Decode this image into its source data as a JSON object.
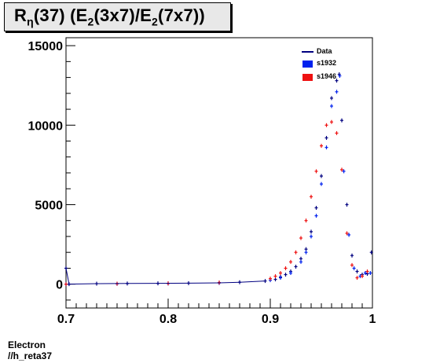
{
  "title": {
    "prefix": "R",
    "sub1": "η",
    "mid": "(37) (E",
    "sub2": "2",
    "mid2": "(3x7)/E",
    "sub3": "2",
    "end": "(7x7))"
  },
  "footer": {
    "line1": "Electron",
    "line2": "//h_reta37"
  },
  "legend": [
    {
      "label": "Data",
      "color": "#000080",
      "style": "line"
    },
    {
      "label": "s1932",
      "color": "#0022ee",
      "style": "box"
    },
    {
      "label": "s1946",
      "color": "#ee1111",
      "style": "box"
    }
  ],
  "chart_data": {
    "type": "scatter",
    "title": "Rη(37) (E2(3x7)/E2(7x7))",
    "xlim": [
      0.7,
      1.0
    ],
    "ylim": [
      -1500,
      15500
    ],
    "x_ticks": [
      "0.7",
      "0.8",
      "0.9",
      "1"
    ],
    "y_ticks": [
      "0",
      "5000",
      "10000",
      "15000"
    ],
    "grid": false,
    "legend_position": "top-right",
    "series": [
      {
        "name": "Data",
        "color": "#000080",
        "points": [
          [
            0.7,
            1000
          ],
          [
            0.703,
            0
          ],
          [
            0.73,
            30
          ],
          [
            0.76,
            40
          ],
          [
            0.79,
            50
          ],
          [
            0.82,
            60
          ],
          [
            0.85,
            80
          ],
          [
            0.87,
            120
          ],
          [
            0.895,
            200
          ],
          [
            0.905,
            300
          ],
          [
            0.91,
            450
          ],
          [
            0.915,
            600
          ],
          [
            0.92,
            800
          ],
          [
            0.925,
            1100
          ],
          [
            0.93,
            1600
          ],
          [
            0.935,
            2200
          ],
          [
            0.94,
            3300
          ],
          [
            0.945,
            4800
          ],
          [
            0.95,
            6800
          ],
          [
            0.955,
            9200
          ],
          [
            0.96,
            11700
          ],
          [
            0.965,
            12800
          ],
          [
            0.9675,
            13200
          ],
          [
            0.97,
            10300
          ],
          [
            0.975,
            5000
          ],
          [
            0.98,
            1800
          ],
          [
            0.985,
            800
          ],
          [
            0.99,
            600
          ],
          [
            0.995,
            650
          ],
          [
            0.999,
            2000
          ]
        ]
      },
      {
        "name": "s1932",
        "color": "#0022ee",
        "points": [
          [
            0.7,
            0
          ],
          [
            0.75,
            20
          ],
          [
            0.8,
            40
          ],
          [
            0.85,
            80
          ],
          [
            0.9,
            250
          ],
          [
            0.91,
            400
          ],
          [
            0.92,
            700
          ],
          [
            0.93,
            1400
          ],
          [
            0.935,
            2000
          ],
          [
            0.94,
            3000
          ],
          [
            0.945,
            4300
          ],
          [
            0.95,
            6300
          ],
          [
            0.955,
            8600
          ],
          [
            0.96,
            11200
          ],
          [
            0.965,
            12100
          ],
          [
            0.968,
            13100
          ],
          [
            0.972,
            7100
          ],
          [
            0.977,
            3100
          ],
          [
            0.982,
            1000
          ],
          [
            0.988,
            500
          ],
          [
            0.993,
            700
          ],
          [
            0.998,
            700
          ]
        ]
      },
      {
        "name": "s1946",
        "color": "#ee1111",
        "points": [
          [
            0.7,
            0
          ],
          [
            0.75,
            30
          ],
          [
            0.8,
            50
          ],
          [
            0.85,
            100
          ],
          [
            0.9,
            350
          ],
          [
            0.905,
            500
          ],
          [
            0.91,
            700
          ],
          [
            0.915,
            1000
          ],
          [
            0.92,
            1400
          ],
          [
            0.925,
            2000
          ],
          [
            0.93,
            2900
          ],
          [
            0.935,
            4000
          ],
          [
            0.94,
            5500
          ],
          [
            0.945,
            7100
          ],
          [
            0.95,
            8700
          ],
          [
            0.955,
            10000
          ],
          [
            0.96,
            10200
          ],
          [
            0.965,
            9500
          ],
          [
            0.97,
            7200
          ],
          [
            0.975,
            3200
          ],
          [
            0.98,
            1200
          ],
          [
            0.985,
            400
          ],
          [
            0.99,
            500
          ],
          [
            0.995,
            800
          ]
        ]
      }
    ]
  }
}
